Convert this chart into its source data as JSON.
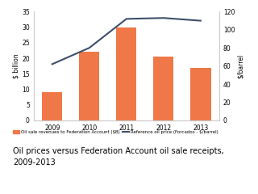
{
  "years": [
    2009,
    2010,
    2011,
    2012,
    2013
  ],
  "bar_values": [
    9,
    22,
    30,
    20.5,
    17
  ],
  "line_values": [
    62,
    80,
    112,
    113,
    110
  ],
  "bar_color": "#F07848",
  "line_color": "#3D4F6A",
  "bar_label": "Oil sale revenues to Federation Account ($B)",
  "line_label": "Reference oil price (Forcados - $/barrel)",
  "ylabel_left": "$ billion",
  "ylabel_right": "$/barrel",
  "ylim_left": [
    0,
    35
  ],
  "ylim_right": [
    0,
    120
  ],
  "yticks_left": [
    0,
    5,
    10,
    15,
    20,
    25,
    30,
    35
  ],
  "yticks_right": [
    0,
    20,
    40,
    60,
    80,
    100,
    120
  ],
  "title": "Oil prices versus Federation Account oil sale receipts,\n2009-2013",
  "title_fontsize": 7.0,
  "bg_color": "#FFFFFF",
  "spine_color": "#CCCCCC"
}
